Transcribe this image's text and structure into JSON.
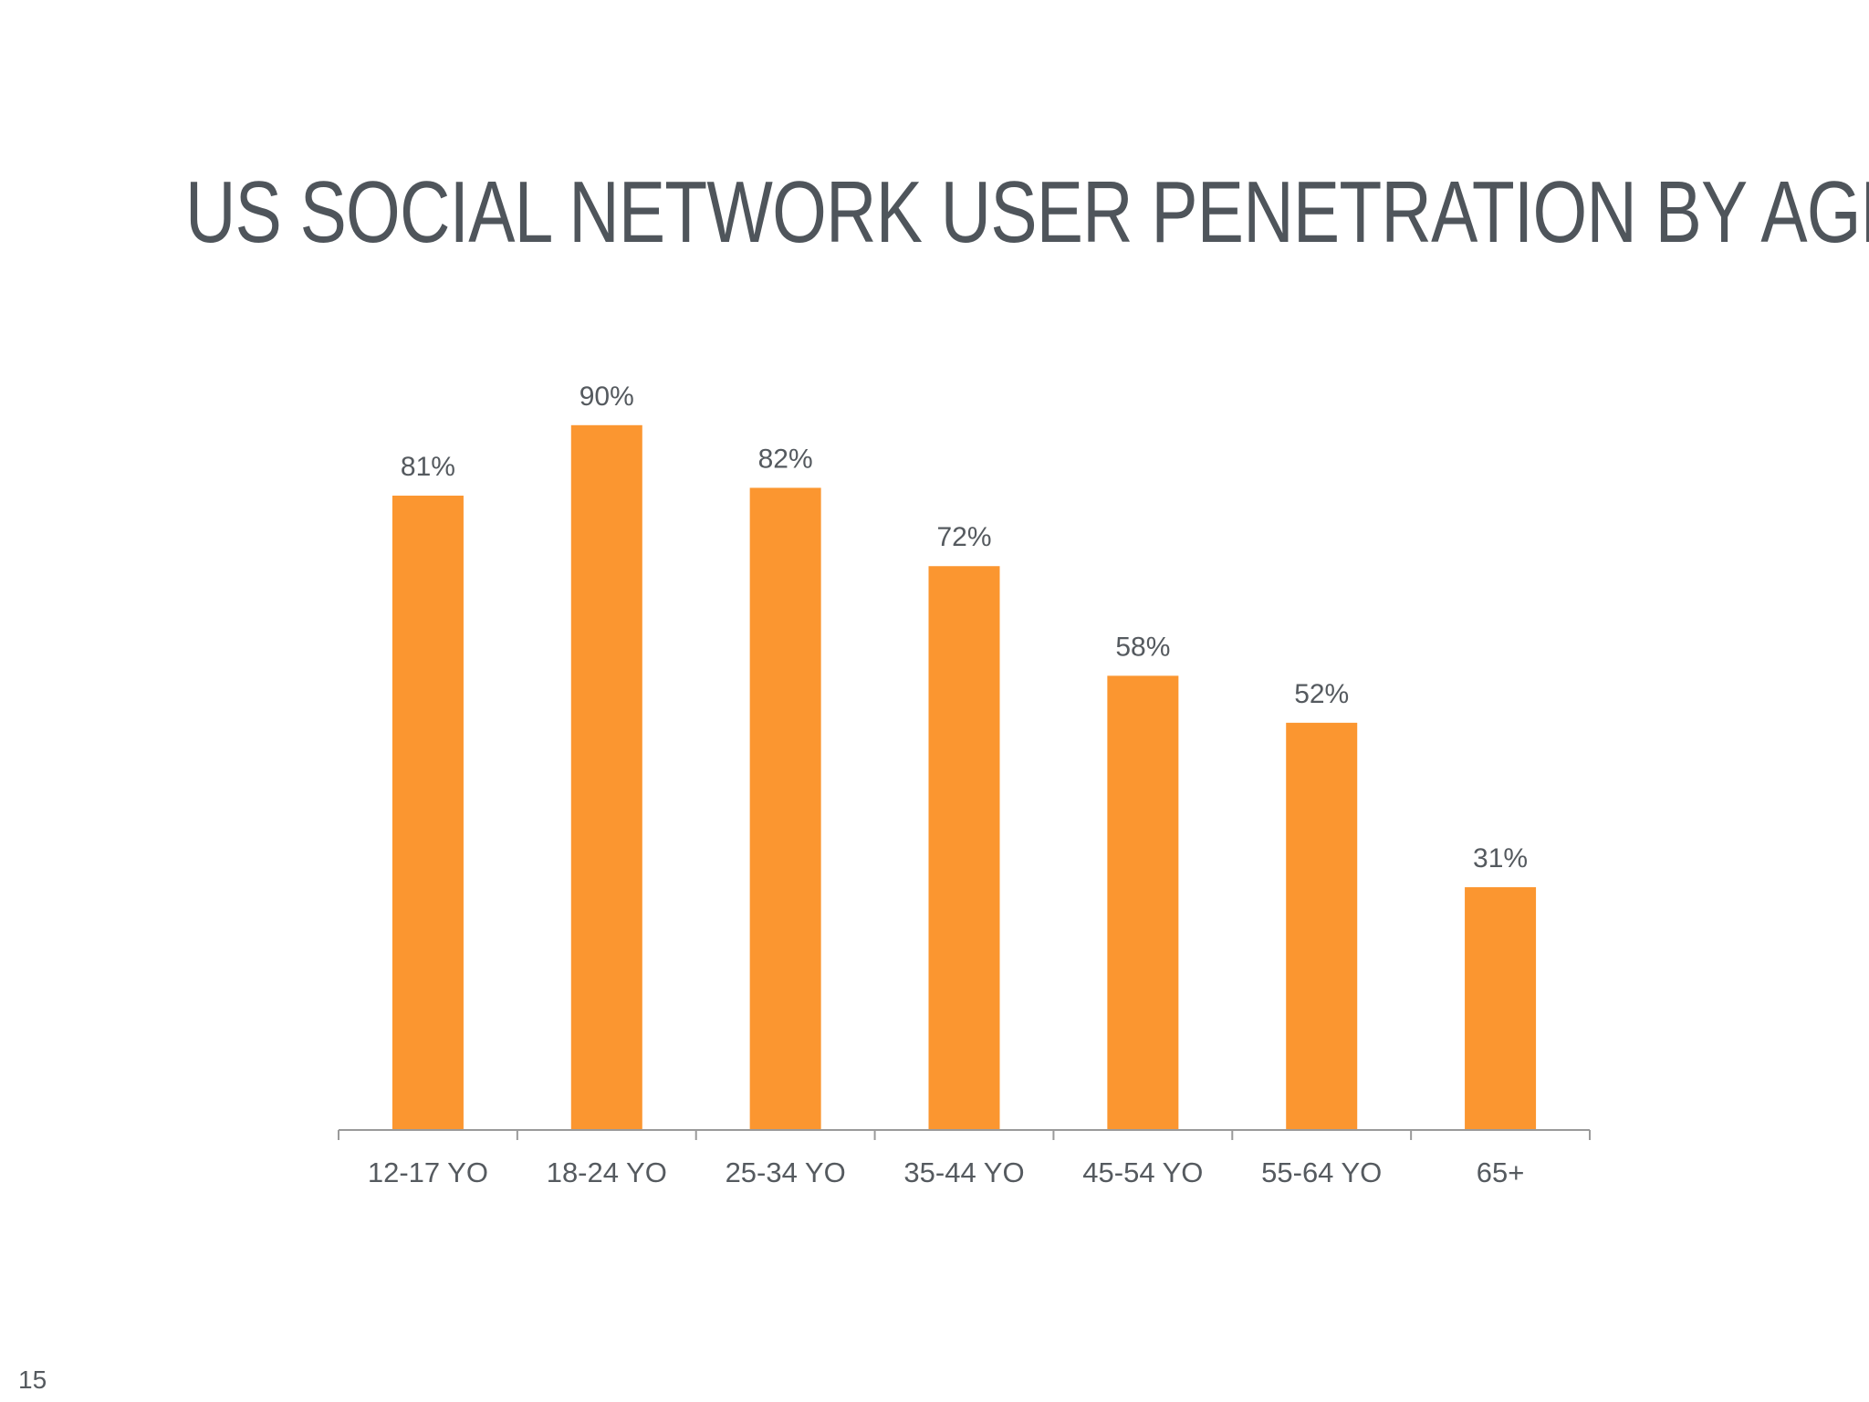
{
  "slide": {
    "title": "US SOCIAL NETWORK USER PENETRATION BY AGE",
    "page_number": "15"
  },
  "colors": {
    "bar": "#fb9630",
    "title": "#4f555b",
    "label": "#555a5f",
    "axis": "#9a9a9a"
  },
  "chart_data": {
    "type": "bar",
    "categories": [
      "12-17 YO",
      "18-24 YO",
      "25-34 YO",
      "35-44 YO",
      "45-54 YO",
      "55-64 YO",
      "65+"
    ],
    "values": [
      81,
      90,
      82,
      72,
      58,
      52,
      31
    ],
    "value_labels": [
      "81%",
      "90%",
      "82%",
      "72%",
      "58%",
      "52%",
      "31%"
    ],
    "xlabel": "",
    "ylabel": "",
    "ylim": [
      0,
      100
    ],
    "grid": false,
    "legend": "none"
  }
}
